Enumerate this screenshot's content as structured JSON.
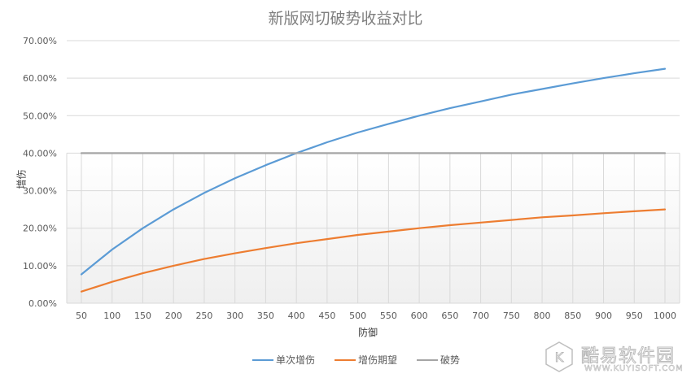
{
  "chart_data": {
    "type": "line",
    "title": "新版网切破势收益对比",
    "xlabel": "防御",
    "ylabel": "增伤",
    "categories": [
      50,
      100,
      150,
      200,
      250,
      300,
      350,
      400,
      450,
      500,
      550,
      600,
      650,
      700,
      750,
      800,
      850,
      900,
      950,
      1000
    ],
    "y_ticks": [
      "0.00%",
      "10.00%",
      "20.00%",
      "30.00%",
      "40.00%",
      "50.00%",
      "60.00%",
      "70.00%"
    ],
    "ylim": [
      0,
      70
    ],
    "grid": true,
    "legend_position": "bottom",
    "series": [
      {
        "name": "单次增伤",
        "color": "#5b9bd5",
        "values": [
          7.7,
          14.3,
          20.0,
          25.0,
          29.4,
          33.3,
          36.8,
          40.0,
          42.9,
          45.5,
          47.8,
          50.0,
          52.0,
          53.8,
          55.6,
          57.1,
          58.6,
          60.0,
          61.3,
          62.5
        ]
      },
      {
        "name": "增伤期望",
        "color": "#ed7d31",
        "values": [
          3.1,
          5.7,
          8.0,
          10.0,
          11.8,
          13.3,
          14.7,
          16.0,
          17.1,
          18.2,
          19.1,
          20.0,
          20.8,
          21.5,
          22.2,
          22.9,
          23.4,
          24.0,
          24.5,
          25.0
        ]
      },
      {
        "name": "破势",
        "color": "#a5a5a5",
        "values": [
          40,
          40,
          40,
          40,
          40,
          40,
          40,
          40,
          40,
          40,
          40,
          40,
          40,
          40,
          40,
          40,
          40,
          40,
          40,
          40
        ]
      }
    ]
  },
  "legend": {
    "items": [
      {
        "label": "单次增伤",
        "color": "#5b9bd5"
      },
      {
        "label": "增伤期望",
        "color": "#ed7d31"
      },
      {
        "label": "破势",
        "color": "#a5a5a5"
      }
    ]
  },
  "watermark": {
    "text": "酷易软件园",
    "url": "WWW.KUYISOFT.COM",
    "logo_letter": "K"
  }
}
